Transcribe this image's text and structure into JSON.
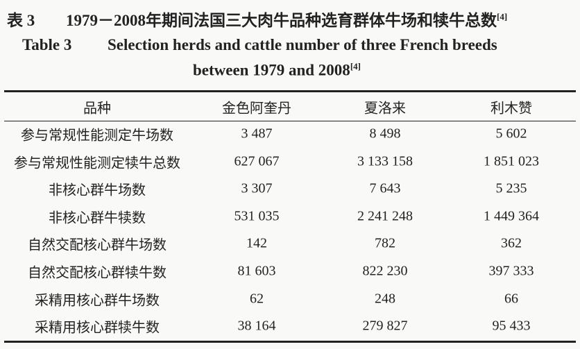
{
  "caption": {
    "cn_label": "表 3",
    "cn_title": "1979－2008年期间法国三大肉牛品种选育群体牛场和犊牛总数",
    "cn_ref": "[4]",
    "en_label": "Table 3",
    "en_title_line1": "Selection herds and cattle number of three French breeds",
    "en_title_line2": "between 1979 and 2008",
    "en_ref": "[4]"
  },
  "table": {
    "header": [
      "品种",
      "金色阿奎丹",
      "夏洛来",
      "利木赞"
    ],
    "rows": [
      [
        "参与常规性能测定牛场数",
        "3 487",
        "8 498",
        "5 602"
      ],
      [
        "参与常规性能测定犊牛总数",
        "627 067",
        "3 133 158",
        "1 851 023"
      ],
      [
        "非核心群牛场数",
        "3 307",
        "7 643",
        "5 235"
      ],
      [
        "非核心群牛犊数",
        "531 035",
        "2 241 248",
        "1 449 364"
      ],
      [
        "自然交配核心群牛场数",
        "142",
        "782",
        "362"
      ],
      [
        "自然交配核心群犊牛数",
        "81 603",
        "822 230",
        "397 333"
      ],
      [
        "采精用核心群牛场数",
        "62",
        "248",
        "66"
      ],
      [
        "采精用核心群犊牛数",
        "38 164",
        "279 827",
        "95 433"
      ]
    ]
  }
}
